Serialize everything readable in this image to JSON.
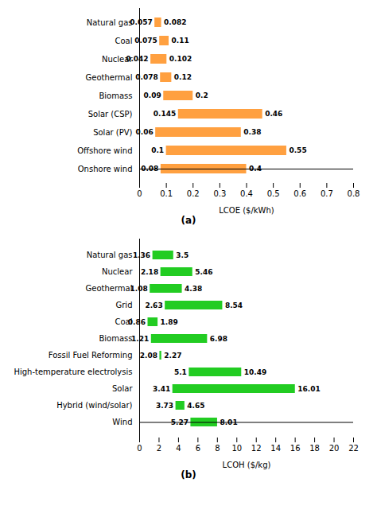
{
  "chart_data": [
    {
      "type": "bar",
      "orientation": "horizontal",
      "categories": [
        "Natural gas",
        "Coal",
        "Nuclear",
        "Geothermal",
        "Biomass",
        "Solar (CSP)",
        "Solar (PV)",
        "Offshore wind",
        "Onshore wind"
      ],
      "low": [
        0.057,
        0.075,
        0.042,
        0.078,
        0.09,
        0.145,
        0.06,
        0.1,
        0.08
      ],
      "high": [
        0.082,
        0.11,
        0.102,
        0.12,
        0.2,
        0.46,
        0.38,
        0.55,
        0.4
      ],
      "color": "#FFA040",
      "x_label": "LCOE ($/kWh)",
      "annotations": [
        "(a)"
      ],
      "xlim": [
        0,
        0.8
      ],
      "xticks": [
        0,
        0.1,
        0.2,
        0.3,
        0.4,
        0.5,
        0.6,
        0.7,
        0.8
      ],
      "data_labels": true,
      "grid": false
    },
    {
      "type": "bar",
      "orientation": "horizontal",
      "categories": [
        "Natural gas",
        "Nuclear",
        "Geothermal",
        "Grid",
        "Coal",
        "Biomass",
        "Fossil Fuel Reforming",
        "High-temperature electrolysis",
        "Solar",
        "Hybrid (wind/solar)",
        "Wind"
      ],
      "low": [
        1.36,
        2.18,
        1.08,
        2.63,
        0.86,
        1.21,
        2.08,
        5.1,
        3.41,
        3.73,
        5.27
      ],
      "high": [
        3.5,
        5.46,
        4.38,
        8.54,
        1.89,
        6.98,
        2.27,
        10.49,
        16.01,
        4.65,
        8.01
      ],
      "color": "#22CC22",
      "x_label": "LCOH ($/kg)",
      "annotations": [
        "(b)"
      ],
      "xlim": [
        0,
        22
      ],
      "xticks": [
        0,
        2,
        4,
        6,
        8,
        10,
        12,
        14,
        16,
        18,
        20,
        22
      ],
      "data_labels": true,
      "grid": false
    }
  ]
}
